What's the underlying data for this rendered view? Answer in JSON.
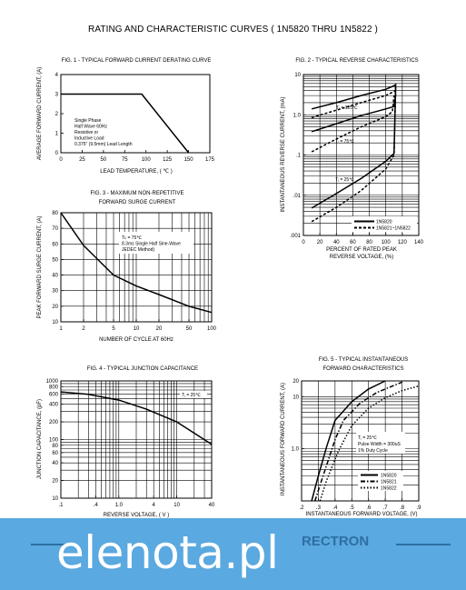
{
  "page_title": "RATING AND CHARACTERISTIC CURVES ( 1N5820 THRU 1N5822 )",
  "footer": {
    "brand": "elenota.pl",
    "logo": "RECTRON"
  },
  "chart_data": [
    {
      "id": "fig1",
      "type": "line",
      "title": "FIG. 1 - TYPICAL FORWARD CURRENT DERATING CURVE",
      "xlabel": "LEAD TEMPERATURE, ( ℃ )",
      "ylabel": "AVERAGE FORWARD CURRENT, (A)",
      "xlim": [
        0,
        175
      ],
      "ylim": [
        0,
        4
      ],
      "xticks": [
        0,
        25,
        50,
        75,
        100,
        125,
        150,
        175
      ],
      "xtick_labels": [
        "0",
        "25",
        "50",
        "75",
        "100",
        "125",
        "150",
        "175"
      ],
      "yticks": [
        0,
        1,
        2,
        3,
        4
      ],
      "ytick_labels": [
        "0",
        "1",
        "2",
        "3",
        "4"
      ],
      "grid": false,
      "annotations": [
        "Single Phase",
        "Half Wave 60Hz",
        "Resistive or",
        "Inductive Load",
        "0.375\" (9.5mm) Lead Length"
      ],
      "series": [
        {
          "values": [
            [
              0,
              3
            ],
            [
              95,
              3
            ],
            [
              150,
              0
            ]
          ]
        }
      ]
    },
    {
      "id": "fig2",
      "type": "line",
      "title": "FIG. 2 - TYPICAL REVERSE CHARACTERISTICS",
      "xlabel": "PERCENT OF RATED PEAK",
      "xlabel2": "REVERSE VOLTAGE, (%)",
      "ylabel": "INSTANTANEOUS REVERSE CURRENT, (mA)",
      "xlim": [
        0,
        140
      ],
      "ylim": [
        0.001,
        10
      ],
      "yscale": "log",
      "xticks": [
        0,
        20,
        40,
        60,
        80,
        100,
        120,
        140
      ],
      "xtick_labels": [
        "0",
        "20",
        "40",
        "60",
        "80",
        "100",
        "120",
        "140"
      ],
      "yticks": [
        0.001,
        0.01,
        0.1,
        1,
        10
      ],
      "ytick_labels": [
        ".001",
        ".01",
        ".1",
        "1.0",
        "10"
      ],
      "grid": true,
      "legend": [
        "1N5820",
        "1N5821~1N5822"
      ],
      "legend_position": "bottom-right",
      "annotations": [
        "Tⱼ = 125℃",
        "Tⱼ = 75℃",
        "Tⱼ = 25℃"
      ],
      "series": [
        {
          "name": "1N5820",
          "label": "125",
          "dash": false,
          "values": [
            [
              10,
              1.4
            ],
            [
              40,
              2.0
            ],
            [
              70,
              3.0
            ],
            [
              100,
              4.3
            ],
            [
              112,
              5.5
            ]
          ]
        },
        {
          "name": "1N5821~1N5822",
          "label": "125",
          "dash": true,
          "values": [
            [
              10,
              0.85
            ],
            [
              40,
              1.3
            ],
            [
              70,
              2.0
            ],
            [
              100,
              3.0
            ],
            [
              112,
              4.0
            ]
          ]
        },
        {
          "name": "1N5820",
          "label": "75",
          "dash": false,
          "values": [
            [
              10,
              0.38
            ],
            [
              40,
              0.6
            ],
            [
              70,
              0.95
            ],
            [
              100,
              1.4
            ],
            [
              110,
              1.6
            ],
            [
              112,
              3.2
            ]
          ]
        },
        {
          "name": "1N5821~1N5822",
          "label": "75",
          "dash": true,
          "values": [
            [
              10,
              0.12
            ],
            [
              40,
              0.25
            ],
            [
              70,
              0.5
            ],
            [
              100,
              0.9
            ],
            [
              108,
              1.2
            ],
            [
              110,
              3.0
            ]
          ]
        },
        {
          "name": "1N5820",
          "label": "25",
          "dash": false,
          "values": [
            [
              10,
              0.0048
            ],
            [
              40,
              0.011
            ],
            [
              70,
              0.026
            ],
            [
              100,
              0.07
            ],
            [
              110,
              0.11
            ],
            [
              112,
              6.0
            ]
          ]
        },
        {
          "name": "1N5821~1N5822",
          "label": "25",
          "dash": true,
          "values": [
            [
              10,
              0.0022
            ],
            [
              40,
              0.005
            ],
            [
              70,
              0.013
            ],
            [
              100,
              0.045
            ],
            [
              110,
              0.1
            ],
            [
              112,
              5.0
            ]
          ]
        }
      ]
    },
    {
      "id": "fig3",
      "type": "line",
      "title": "FIG. 3 - MAXIMUM NON-REPETITIVE",
      "title2": "FORWARD SURGE CURRENT",
      "xlabel": "NUMBER OF CYCLE AT 60Hz",
      "ylabel": "PEAK FORWARD SURGE CURRENT, (A)",
      "xlim": [
        1,
        100
      ],
      "xscale": "log",
      "ylim": [
        10,
        80
      ],
      "xticks": [
        1,
        2,
        5,
        10,
        20,
        50,
        100
      ],
      "xtick_labels": [
        "1",
        "2",
        "5",
        "10",
        "20",
        "50",
        "100"
      ],
      "yticks": [
        10,
        20,
        30,
        40,
        50,
        60,
        70,
        80
      ],
      "ytick_labels": [
        "10",
        "20",
        "30",
        "40",
        "50",
        "60",
        "70",
        "80"
      ],
      "grid": true,
      "annotations": [
        "Tʟ = 75℃",
        "8.3ms Single Half Sine-Wave",
        "JEDEC Method)"
      ],
      "series": [
        {
          "values": [
            [
              1,
              80
            ],
            [
              2,
              59
            ],
            [
              5,
              40
            ],
            [
              10,
              33
            ],
            [
              20,
              27.5
            ],
            [
              50,
              20
            ],
            [
              100,
              16
            ]
          ]
        }
      ]
    },
    {
      "id": "fig4",
      "type": "line",
      "title": "FIG. 4 - TYPICAL JUNCTION CAPACITANCE",
      "xlabel": "REVERSE VOLTAGE, ( V )",
      "ylabel": "JUNCTION CAPACITANCE, (pF)",
      "xlim": [
        0.1,
        40
      ],
      "xscale": "log",
      "ylim": [
        10,
        1000
      ],
      "yscale": "log",
      "xticks": [
        0.1,
        0.4,
        1,
        4,
        10,
        40
      ],
      "xtick_labels": [
        ".1",
        ".4",
        "1.0",
        "4",
        "10",
        "40"
      ],
      "yticks": [
        10,
        20,
        40,
        60,
        80,
        100,
        200,
        400,
        600,
        800,
        1000
      ],
      "ytick_labels": [
        "10",
        "20",
        "40",
        "60",
        "80",
        "100",
        "200",
        "400",
        "600",
        "800",
        "1000"
      ],
      "grid": true,
      "annotations": [
        "Tⱼ = 25℃"
      ],
      "series": [
        {
          "values": [
            [
              0.1,
              650
            ],
            [
              0.3,
              590
            ],
            [
              1,
              470
            ],
            [
              3,
              330
            ],
            [
              10,
              200
            ],
            [
              40,
              83
            ]
          ]
        }
      ]
    },
    {
      "id": "fig5",
      "type": "line",
      "title": "FIG. 5 - TYPICAL INSTANTANEOUS",
      "title2": "FORWARD CHARACTERISTICS",
      "xlabel": "INSTANTANEOUS FORWARD VOLTAGE, (V)",
      "ylabel": "INSTANTANEOUS FORWARD CURRENT, (A)",
      "xlim": [
        0.2,
        0.9
      ],
      "ylim": [
        0.1,
        20
      ],
      "yscale": "log",
      "xticks": [
        0.2,
        0.3,
        0.4,
        0.5,
        0.6,
        0.7,
        0.8,
        0.9
      ],
      "xtick_labels": [
        ".2",
        ".3",
        ".4",
        ".5",
        ".6",
        ".7",
        ".8",
        ".9"
      ],
      "yticks": [
        1,
        10,
        20
      ],
      "ytick_labels": [
        "1.0",
        "10",
        "20"
      ],
      "grid": true,
      "legend": [
        "1N5820",
        "1N5821",
        "1N5822"
      ],
      "legend_position": "bottom-right",
      "annotations": [
        "Tⱼ = 25℃",
        "Pulse Width = 300uS",
        "1% Duty Cycle"
      ],
      "series": [
        {
          "name": "1N5820",
          "dash": "solid",
          "values": [
            [
              0.26,
              0.1
            ],
            [
              0.3,
              0.3
            ],
            [
              0.35,
              1.1
            ],
            [
              0.4,
              3.5
            ],
            [
              0.5,
              8
            ],
            [
              0.6,
              14
            ],
            [
              0.7,
              20
            ]
          ]
        },
        {
          "name": "1N5821",
          "dash": "dashdot",
          "values": [
            [
              0.28,
              0.1
            ],
            [
              0.32,
              0.25
            ],
            [
              0.4,
              1.5
            ],
            [
              0.45,
              3.5
            ],
            [
              0.55,
              7.5
            ],
            [
              0.65,
              12
            ],
            [
              0.8,
              19
            ]
          ]
        },
        {
          "name": "1N5822",
          "dash": "dot",
          "values": [
            [
              0.31,
              0.1
            ],
            [
              0.35,
              0.25
            ],
            [
              0.42,
              0.9
            ],
            [
              0.5,
              2.8
            ],
            [
              0.6,
              6
            ],
            [
              0.7,
              9.5
            ],
            [
              0.8,
              13
            ],
            [
              0.9,
              16
            ]
          ]
        }
      ]
    }
  ]
}
